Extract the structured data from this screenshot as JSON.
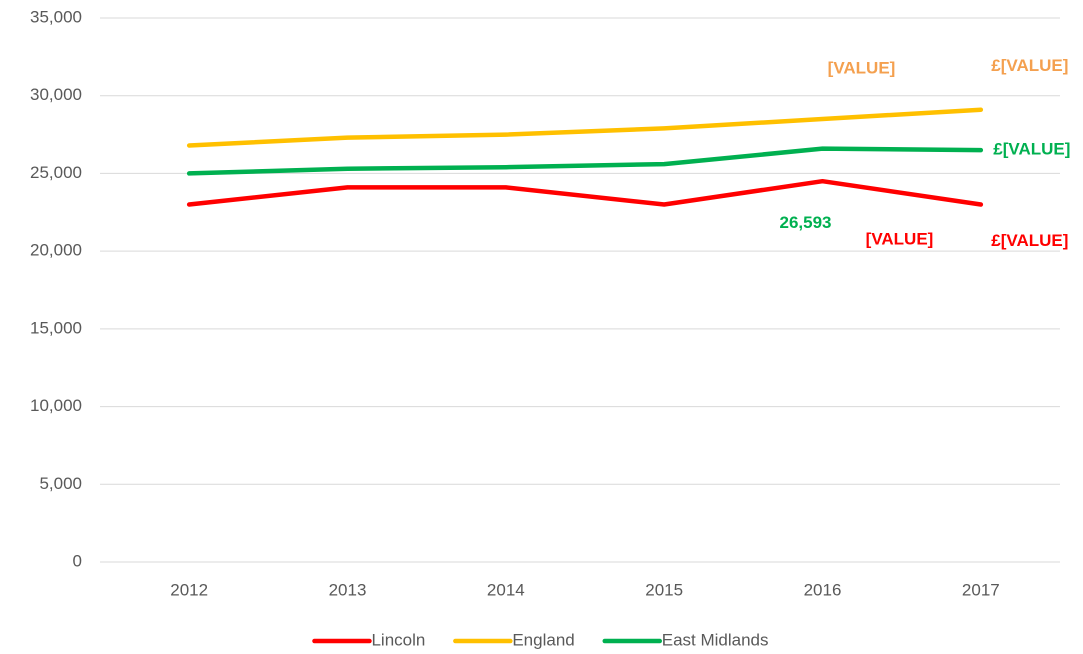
{
  "chart_data": {
    "type": "line",
    "categories": [
      "2012",
      "2013",
      "2014",
      "2015",
      "2016",
      "2017"
    ],
    "series": [
      {
        "name": "Lincoln",
        "color": "#ff0000",
        "label_color": "#ff0000",
        "values": [
          23000,
          24100,
          24100,
          23000,
          24500,
          23000
        ],
        "value_labels": [
          null,
          null,
          null,
          null,
          "[VALUE]",
          "£[VALUE]"
        ]
      },
      {
        "name": "England",
        "color": "#ffc000",
        "label_color": "#f4a04f",
        "values": [
          26800,
          27300,
          27500,
          27900,
          28500,
          29100
        ],
        "value_labels": [
          null,
          null,
          null,
          null,
          "[VALUE]",
          "£[VALUE]"
        ]
      },
      {
        "name": "East Midlands",
        "color": "#00b050",
        "label_color": "#00b050",
        "values": [
          25000,
          25300,
          25400,
          25600,
          26593,
          26500
        ],
        "value_labels": [
          null,
          null,
          null,
          null,
          "26,593",
          "£[VALUE]"
        ]
      }
    ],
    "ylim": [
      0,
      35000
    ],
    "yticks": [
      0,
      {
        "value": 5000,
        "label": "5,000"
      },
      {
        "value": 10000,
        "label": "10,000"
      },
      {
        "value": 15000,
        "label": "15,000"
      },
      {
        "value": 20000,
        "label": "20,000"
      },
      {
        "value": 25000,
        "label": "25,000"
      },
      {
        "value": 30000,
        "label": "30,000"
      },
      {
        "value": 35000,
        "label": "35,000"
      }
    ],
    "grid": true,
    "legend": "bottom"
  }
}
